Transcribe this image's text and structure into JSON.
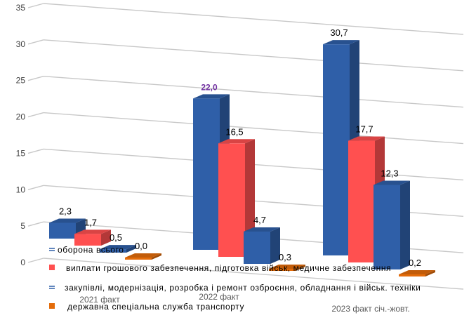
{
  "chart_data": {
    "type": "bar",
    "title": "",
    "xlabel": "",
    "ylabel": "",
    "ylim": [
      0,
      35
    ],
    "yticks": [
      0,
      5,
      10,
      15,
      20,
      25,
      30,
      35
    ],
    "grid": true,
    "three_d": true,
    "legend_position": "bottom-left",
    "categories": [
      "2021 факт",
      "2022 факт",
      "2023 факт січ.-жовт."
    ],
    "series": [
      {
        "name": "оборона всього",
        "color": "#2f5fa8",
        "values": [
          2.3,
          22.0,
          30.7
        ],
        "labels": [
          "2,3",
          "22,0",
          "30,7"
        ]
      },
      {
        "name": "виплати грошового забезпечення, підготовка військ, медичне забезпечення",
        "color": "#ff5050",
        "values": [
          1.7,
          16.5,
          17.7
        ],
        "labels": [
          "1,7",
          "16,5",
          "17,7"
        ]
      },
      {
        "name": "закупівлі, модернізація, розробка і ремонт озброєння, обладнання і військ. техніки",
        "color": "#2f5fa8",
        "values": [
          0.5,
          4.7,
          12.3
        ],
        "labels": [
          "0,5",
          "4,7",
          "12,3"
        ]
      },
      {
        "name": "державна спеціальна служба транспорту",
        "color": "#e46c0a",
        "values": [
          0.0,
          0.3,
          0.2
        ],
        "labels": [
          "0,0",
          "0,3",
          "0,2"
        ]
      }
    ],
    "highlighted_label": "22,0"
  }
}
